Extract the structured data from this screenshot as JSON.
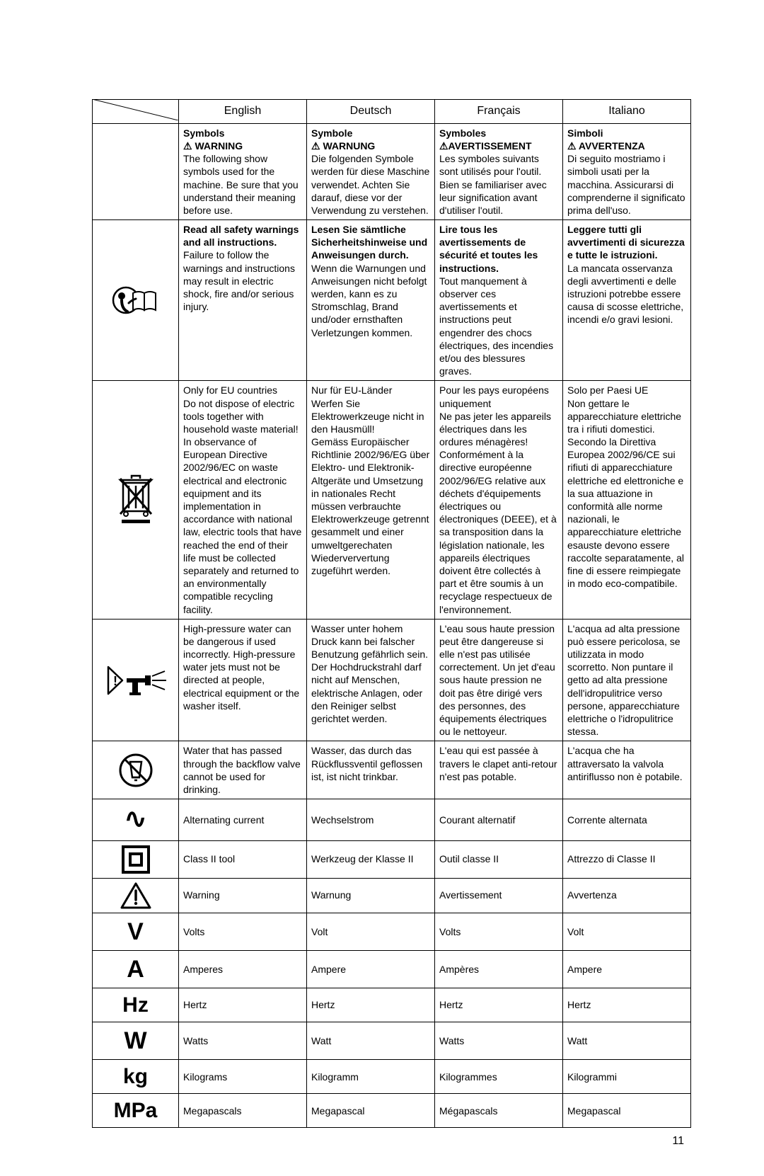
{
  "headers": {
    "en": "English",
    "de": "Deutsch",
    "fr": "Français",
    "it": "Italiano"
  },
  "rows": [
    {
      "icon": "none",
      "en": "<b>Symbols</b><br><b>⚠ WARNING</b><br>The following show symbols used for the machine. Be sure that you understand their meaning before use.",
      "de": "<b>Symbole</b><br><b>⚠ WARNUNG</b><br>Die folgenden Symbole werden für diese Maschine verwendet. Achten Sie darauf, diese vor der Verwendung zu verstehen.",
      "fr": "<b>Symboles</b><br><b>⚠AVERTISSEMENT</b><br>Les symboles suivants sont utilisés pour l'outil. Bien se familiariser avec leur signification avant d'utiliser l'outil.",
      "it": "<b>Simboli</b><br><b>⚠ AVVERTENZA</b><br>Di seguito mostriamo i simboli usati per la macchina. Assicurarsi di comprenderne il significato prima dell'uso."
    },
    {
      "icon": "manual",
      "en": "<b>Read all safety warnings and all instructions.</b><br>Failure to follow the warnings and instructions may result in electric shock, fire and/or serious injury.",
      "de": "<b>Lesen Sie sämtliche Sicherheitshinweise und Anweisungen durch.</b><br>Wenn die Warnungen und Anweisungen nicht befolgt werden, kann es zu Stromschlag, Brand und/oder ernsthaften Verletzungen kommen.",
      "fr": "<b>Lire tous les avertissements de sécurité et toutes les instructions.</b><br>Tout manquement à observer ces avertissements et instructions peut engendrer des chocs électriques, des incendies et/ou des blessures graves.",
      "it": "<b>Leggere tutti gli avvertimenti di sicurezza e tutte le istruzioni.</b><br>La mancata osservanza degli avvertimenti e delle istruzioni potrebbe essere causa di scosse elettriche, incendi e/o gravi lesioni."
    },
    {
      "icon": "weee",
      "en": "Only for EU countries<br>Do not dispose of electric tools together with household waste material!<br>In observance of European Directive 2002/96/EC on waste electrical and electronic equipment and its implementation in accordance with national law, electric tools that have reached the end of their life must be collected separately and returned to an environmentally compatible recycling facility.",
      "de": "Nur für EU-Länder<br>Werfen Sie Elektrowerkzeuge nicht in den Hausmüll!<br>Gemäss Europäischer Richtlinie 2002/96/EG über Elektro- und Elektronik- Altgeräte und Umsetzung in nationales Recht müssen verbrauchte Elektrowerkzeuge getrennt gesammelt und einer umweltgerechaten Wiederververtung zugeführt werden.",
      "fr": "Pour les pays européens uniquement<br>Ne pas jeter les appareils électriques dans les ordures ménagères!<br>Conformément à la directive européenne 2002/96/EG relative aux déchets d'équipements électriques ou électroniques (DEEE), et à sa transposition dans la législation nationale, les appareils électriques doivent être collectés à part et être soumis à un recyclage respectueux de l'environnement.",
      "it": "Solo per Paesi UE<br>Non gettare le apparecchiature elettriche tra i rifiuti domestici.<br>Secondo la Direttiva Europea 2002/96/CE sui rifiuti di apparecchiature elettriche ed elettroniche e la sua attuazione in conformità alle norme nazionali, le apparecchiature elettriche esauste devono essere raccolte separatamente, al fine di essere reimpiegate in modo eco-compatibile."
    },
    {
      "icon": "spray",
      "en": "High-pressure water can be dangerous if used incorrectly. High-pressure water jets must not be directed at people, electrical equipment or the washer itself.",
      "de": "Wasser unter hohem Druck kann bei falscher Benutzung gefährlich sein. Der Hochdruckstrahl darf nicht auf Menschen, elektrische Anlagen, oder den Reiniger selbst gerichtet werden.",
      "fr": "L'eau sous haute pression peut être dangereuse si elle n'est pas utilisée correctement. Un jet d'eau sous haute pression ne doit pas être dirigé vers des personnes, des équipements électriques ou le nettoyeur.",
      "it": "L'acqua ad alta pressione può essere pericolosa, se utilizzata in modo scorretto. Non puntare il getto ad alta pressione dell'idropulitrice verso persone, apparecchiature elettriche o l'idropulitrice stessa."
    },
    {
      "icon": "nodrink",
      "en": "Water that has passed through the backflow valve cannot be used for drinking.",
      "de": "Wasser, das durch das Rückflussventil geflossen ist, ist nicht trinkbar.",
      "fr": "L'eau qui est passée à travers le clapet anti-retour n'est pas potable.",
      "it": "L'acqua che ha attraversato la valvola antiriflusso non è potabile."
    },
    {
      "icon": "ac",
      "en": "Alternating current",
      "de": "Wechselstrom",
      "fr": "Courant alternatif",
      "it": "Corrente alternata"
    },
    {
      "icon": "class2",
      "en": "Class II tool",
      "de": "Werkzeug der Klasse II",
      "fr": "Outil classe II",
      "it": "Attrezzo di Classe II"
    },
    {
      "icon": "wtri",
      "en": "Warning",
      "de": "Warnung",
      "fr": "Avertissement",
      "it": "Avvertenza"
    },
    {
      "icon": "V",
      "en": "Volts",
      "de": "Volt",
      "fr": "Volts",
      "it": "Volt"
    },
    {
      "icon": "A",
      "en": "Amperes",
      "de": "Ampere",
      "fr": "Ampères",
      "it": "Ampere"
    },
    {
      "icon": "Hz",
      "en": "Hertz",
      "de": "Hertz",
      "fr": "Hertz",
      "it": "Hertz"
    },
    {
      "icon": "W",
      "en": "Watts",
      "de": "Watt",
      "fr": "Watts",
      "it": "Watt"
    },
    {
      "icon": "kg",
      "en": "Kilograms",
      "de": "Kilogramm",
      "fr": "Kilogrammes",
      "it": "Kilogrammi"
    },
    {
      "icon": "MPa",
      "en": "Megapascals",
      "de": "Megapascal",
      "fr": "Mégapascals",
      "it": "Megapascal"
    }
  ],
  "pagenum": "11",
  "textSymbols": [
    "V",
    "A",
    "Hz",
    "W",
    "kg",
    "MPa"
  ],
  "colors": {
    "border": "#000000",
    "text": "#000000",
    "bg": "#ffffff"
  }
}
